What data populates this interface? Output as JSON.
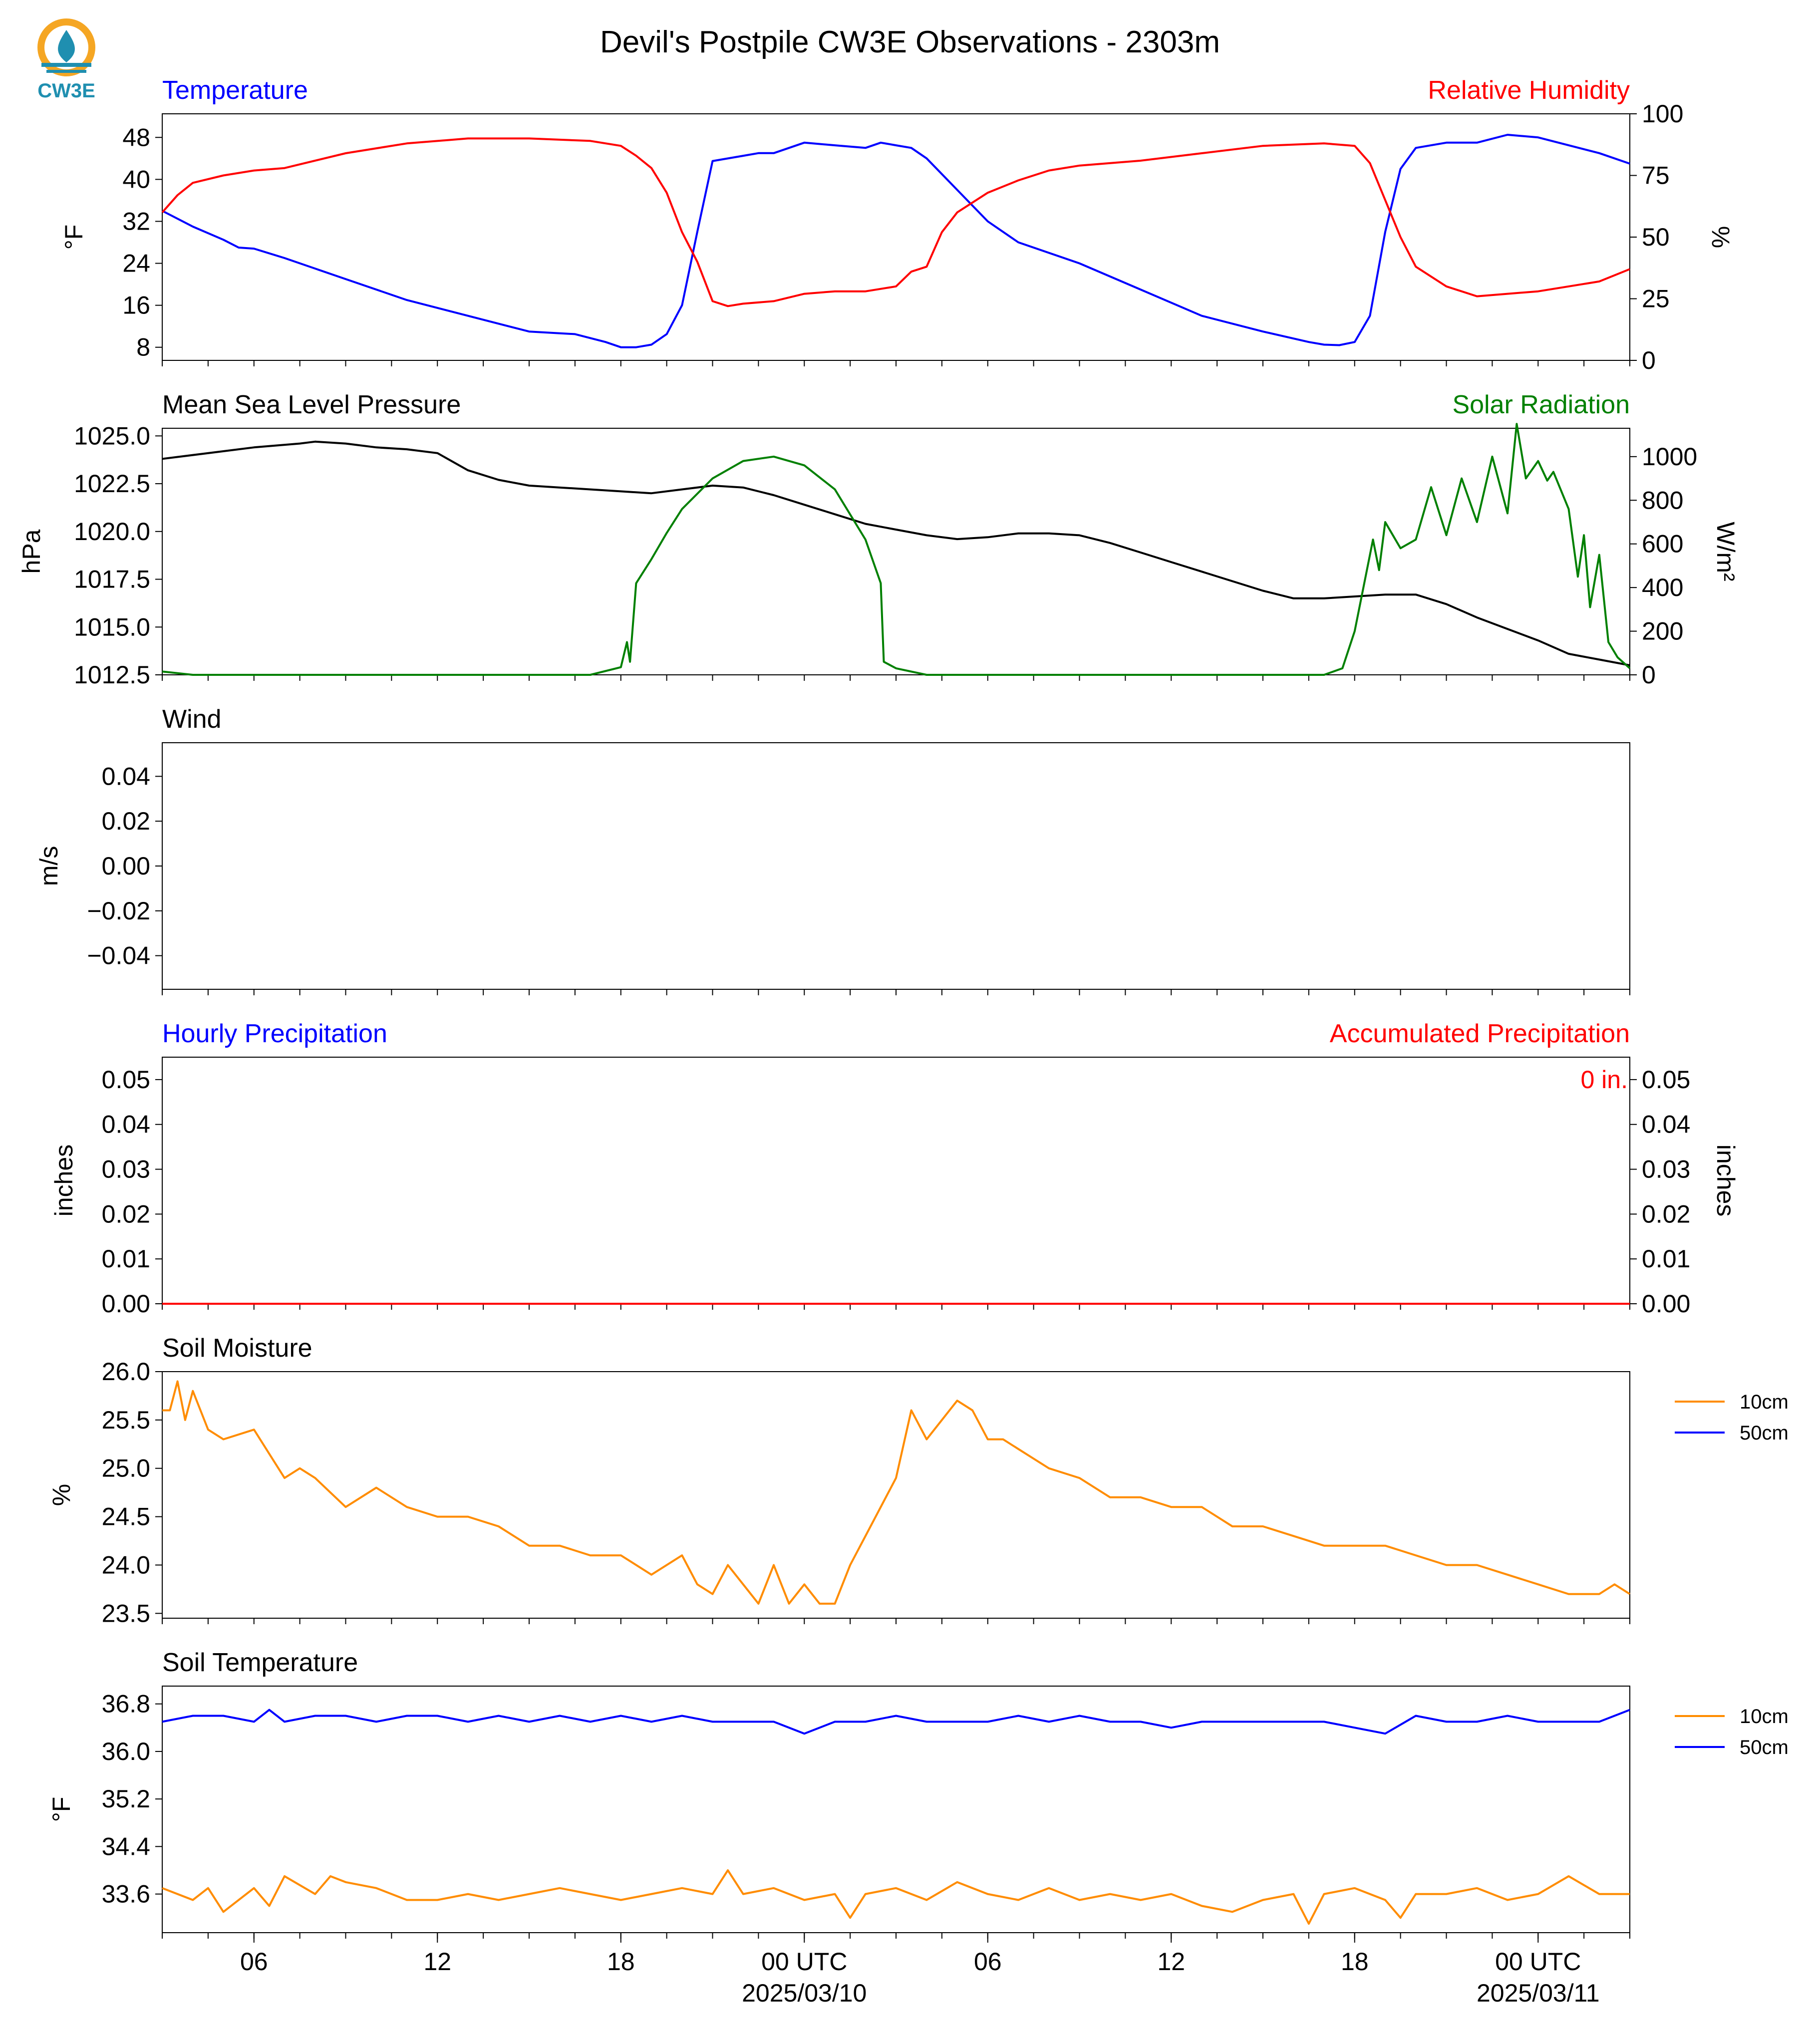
{
  "figure": {
    "title": "Devil's Postpile CW3E Observations - 2303m",
    "logo_text": "CW3E",
    "x_ticks": [
      "06",
      "12",
      "18",
      "00 UTC",
      "06",
      "12",
      "18",
      "00 UTC"
    ],
    "x_dates": [
      "2025/03/10",
      "2025/03/11"
    ]
  },
  "colors": {
    "blue": "#0000ff",
    "red": "#ff0000",
    "green": "#008000",
    "black": "#000000",
    "orange": "#ff8c00",
    "logo_orange": "#f5a623",
    "logo_teal": "#1f8fb0"
  },
  "chart_data": [
    {
      "type": "line",
      "title_left": "Temperature",
      "title_right": "Relative Humidity",
      "ylabel": "°F",
      "ylabel_right": "%",
      "yticks": [
        "48",
        "40",
        "32",
        "24",
        "16",
        "8"
      ],
      "yticks_right": [
        "100",
        "75",
        "50",
        "25",
        "0"
      ],
      "ylim": [
        5.5,
        52.5
      ],
      "ylim_right": [
        0,
        100
      ],
      "x_hours_range": [
        0,
        48
      ],
      "series": [
        {
          "name": "Temperature",
          "axis": "left",
          "color": "#0000ff",
          "x": [
            0,
            1,
            2,
            2.5,
            3,
            4,
            6,
            8,
            10,
            12,
            13.5,
            14.5,
            15,
            15.5,
            16,
            16.5,
            17,
            17.5,
            18,
            19,
            19.5,
            20,
            21,
            22,
            23,
            23.5,
            24,
            24.5,
            25,
            26,
            27,
            28,
            30,
            32,
            34,
            36,
            37.5,
            38,
            38.5,
            39,
            39.5,
            40,
            40.5,
            41,
            42,
            43,
            44,
            45,
            46,
            47,
            48
          ],
          "y": [
            34,
            31,
            28.5,
            27,
            26.8,
            25,
            21,
            17,
            14,
            11,
            10.5,
            9,
            8,
            8,
            8.5,
            10.5,
            16,
            30,
            43.5,
            44.5,
            45,
            45,
            47,
            46.5,
            46,
            47,
            46.5,
            46,
            44,
            38,
            32,
            28,
            24,
            19,
            14,
            11,
            9,
            8.5,
            8.4,
            9,
            14,
            30,
            42,
            46,
            47,
            47,
            48.5,
            48,
            46.5,
            45,
            43
          ]
        },
        {
          "name": "Relative Humidity",
          "axis": "right",
          "color": "#ff0000",
          "x": [
            0,
            0.5,
            1,
            2,
            3,
            4,
            6,
            8,
            10,
            12,
            14,
            15,
            15.5,
            16,
            16.5,
            17,
            17.5,
            18,
            18.5,
            19,
            20,
            21,
            22,
            23,
            24,
            24.5,
            25,
            25.5,
            26,
            27,
            28,
            29,
            30,
            32,
            34,
            36,
            38,
            39,
            39.5,
            40,
            40.5,
            41,
            42,
            43,
            44,
            45,
            46,
            47,
            48
          ],
          "y": [
            60,
            67,
            72,
            75,
            77,
            78,
            84,
            88,
            90,
            90,
            89,
            87,
            83,
            78,
            68,
            52,
            40,
            24,
            22,
            23,
            24,
            27,
            28,
            28,
            30,
            36,
            38,
            52,
            60,
            68,
            73,
            77,
            79,
            81,
            84,
            87,
            88,
            87,
            80,
            65,
            50,
            38,
            30,
            26,
            27,
            28,
            30,
            32,
            37
          ]
        }
      ]
    },
    {
      "type": "line",
      "title_left": "Mean Sea Level Pressure",
      "title_right": "Solar Radiation",
      "ylabel": "hPa",
      "ylabel_right": "W/m²",
      "yticks": [
        "1025.0",
        "1022.5",
        "1020.0",
        "1017.5",
        "1015.0",
        "1012.5"
      ],
      "yticks_right": [
        "1000",
        "800",
        "600",
        "400",
        "200",
        "0"
      ],
      "ylim": [
        1012.5,
        1025.4
      ],
      "ylim_right": [
        0,
        1130
      ],
      "x_hours_range": [
        0,
        48
      ],
      "series": [
        {
          "name": "Mean Sea Level Pressure",
          "axis": "left",
          "color": "#000000",
          "x": [
            0,
            2,
            3,
            4.5,
            5,
            6,
            7,
            8,
            9,
            10,
            11,
            12,
            13,
            14,
            15,
            16,
            17,
            18,
            19,
            20,
            21,
            22,
            23,
            24,
            25,
            26,
            27,
            28,
            29,
            30,
            31,
            32,
            33,
            34,
            35,
            36,
            37,
            38,
            39,
            40,
            41,
            42,
            43,
            44,
            45,
            46,
            47,
            48
          ],
          "y": [
            1023.8,
            1024.2,
            1024.4,
            1024.6,
            1024.7,
            1024.6,
            1024.4,
            1024.3,
            1024.1,
            1023.2,
            1022.7,
            1022.4,
            1022.3,
            1022.2,
            1022.1,
            1022.0,
            1022.2,
            1022.4,
            1022.3,
            1021.9,
            1021.4,
            1020.9,
            1020.4,
            1020.1,
            1019.8,
            1019.6,
            1019.7,
            1019.9,
            1019.9,
            1019.8,
            1019.4,
            1018.9,
            1018.4,
            1017.9,
            1017.4,
            1016.9,
            1016.5,
            1016.5,
            1016.6,
            1016.7,
            1016.7,
            1016.2,
            1015.5,
            1014.9,
            1014.3,
            1013.6,
            1013.3,
            1013.0
          ]
        },
        {
          "name": "Solar Radiation",
          "axis": "right",
          "color": "#008000",
          "x": [
            0,
            1,
            14,
            15,
            15.2,
            15.3,
            15.5,
            16,
            16.5,
            17,
            18,
            19,
            20,
            21,
            22,
            23,
            23.5,
            23.6,
            24,
            25,
            38,
            38.6,
            39,
            39.5,
            39.6,
            39.8,
            40,
            40.5,
            41,
            41.5,
            42,
            42.5,
            43,
            43.5,
            44,
            44.3,
            44.6,
            45,
            45.3,
            45.5,
            46,
            46.3,
            46.5,
            46.7,
            47,
            47.3,
            47.6,
            48
          ],
          "y": [
            15,
            0,
            0,
            35,
            150,
            60,
            420,
            530,
            650,
            760,
            900,
            980,
            1000,
            960,
            850,
            620,
            420,
            60,
            30,
            0,
            0,
            30,
            200,
            550,
            620,
            480,
            700,
            580,
            620,
            860,
            640,
            900,
            700,
            1000,
            740,
            1150,
            900,
            980,
            890,
            930,
            760,
            450,
            640,
            310,
            550,
            150,
            80,
            30
          ]
        }
      ]
    },
    {
      "type": "line",
      "title_left": "Wind",
      "ylabel": "m/s",
      "yticks": [
        "0.04",
        "0.02",
        "0.00",
        "−0.02",
        "−0.04"
      ],
      "ylim": [
        -0.055,
        0.055
      ],
      "series": []
    },
    {
      "type": "bar",
      "title_left": "Hourly Precipitation",
      "title_right": "Accumulated Precipitation",
      "ylabel": "inches",
      "ylabel_right": "inches",
      "yticks": [
        "0.05",
        "0.04",
        "0.03",
        "0.02",
        "0.01",
        "0.00"
      ],
      "yticks_right": [
        "0.05",
        "0.04",
        "0.03",
        "0.02",
        "0.01",
        "0.00"
      ],
      "ylim": [
        0,
        0.055
      ],
      "total_label": "0 in.",
      "accumulated": {
        "x": [
          0,
          48
        ],
        "y": [
          0,
          0
        ]
      }
    },
    {
      "type": "line",
      "title_left": "Soil Moisture",
      "ylabel": "%",
      "yticks": [
        "26.0",
        "25.5",
        "25.0",
        "24.5",
        "24.0",
        "23.5"
      ],
      "ylim": [
        23.45,
        26.0
      ],
      "legend": [
        "10cm",
        "50cm"
      ],
      "series": [
        {
          "name": "10cm",
          "color": "#ff8c00",
          "x": [
            0,
            0.25,
            0.5,
            0.75,
            1,
            1.5,
            2,
            3,
            4,
            4.5,
            5,
            6,
            7,
            8,
            9,
            10,
            11,
            12,
            13,
            14,
            15,
            16,
            17,
            17.5,
            18,
            18.5,
            19,
            19.5,
            20,
            20.5,
            21,
            21.5,
            22,
            22.5,
            23,
            23.5,
            24,
            24.5,
            25,
            25.5,
            26,
            26.5,
            27,
            27.5,
            28,
            29,
            30,
            31,
            32,
            33,
            34,
            35,
            36,
            37,
            38,
            39,
            40,
            41,
            42,
            43,
            44,
            45,
            46,
            46.5,
            47,
            47.5,
            48
          ],
          "y": [
            25.6,
            25.6,
            25.9,
            25.5,
            25.8,
            25.4,
            25.3,
            25.4,
            24.9,
            25.0,
            24.9,
            24.6,
            24.8,
            24.6,
            24.5,
            24.5,
            24.4,
            24.2,
            24.2,
            24.1,
            24.1,
            23.9,
            24.1,
            23.8,
            23.7,
            24.0,
            23.8,
            23.6,
            24.0,
            23.6,
            23.8,
            23.6,
            23.6,
            24.0,
            24.3,
            24.6,
            24.9,
            25.6,
            25.3,
            25.5,
            25.7,
            25.6,
            25.3,
            25.3,
            25.2,
            25.0,
            24.9,
            24.7,
            24.7,
            24.6,
            24.6,
            24.4,
            24.4,
            24.3,
            24.2,
            24.2,
            24.2,
            24.1,
            24.0,
            24.0,
            23.9,
            23.8,
            23.7,
            23.7,
            23.7,
            23.8,
            23.7
          ]
        },
        {
          "name": "50cm",
          "color": "#0000ff",
          "x": [],
          "y": []
        }
      ]
    },
    {
      "type": "line",
      "title_left": "Soil Temperature",
      "ylabel": "°F",
      "yticks": [
        "36.8",
        "36.0",
        "35.2",
        "34.4",
        "33.6"
      ],
      "ylim": [
        32.95,
        37.1
      ],
      "legend": [
        "10cm",
        "50cm"
      ],
      "series": [
        {
          "name": "10cm",
          "color": "#ff8c00",
          "x": [
            0,
            1,
            1.5,
            2,
            3,
            3.5,
            4,
            5,
            5.5,
            6,
            7,
            8,
            9,
            10,
            11,
            12,
            13,
            14,
            15,
            16,
            17,
            18,
            18.5,
            19,
            20,
            21,
            22,
            22.5,
            23,
            24,
            25,
            26,
            27,
            28,
            29,
            30,
            31,
            32,
            33,
            34,
            35,
            36,
            37,
            37.5,
            38,
            39,
            40,
            40.5,
            41,
            42,
            43,
            44,
            45,
            46,
            47,
            48
          ],
          "y": [
            33.7,
            33.5,
            33.7,
            33.3,
            33.7,
            33.4,
            33.9,
            33.6,
            33.9,
            33.8,
            33.7,
            33.5,
            33.5,
            33.6,
            33.5,
            33.6,
            33.7,
            33.6,
            33.5,
            33.6,
            33.7,
            33.6,
            34.0,
            33.6,
            33.7,
            33.5,
            33.6,
            33.2,
            33.6,
            33.7,
            33.5,
            33.8,
            33.6,
            33.5,
            33.7,
            33.5,
            33.6,
            33.5,
            33.6,
            33.4,
            33.3,
            33.5,
            33.6,
            33.1,
            33.6,
            33.7,
            33.5,
            33.2,
            33.6,
            33.6,
            33.7,
            33.5,
            33.6,
            33.9,
            33.6,
            33.6
          ]
        },
        {
          "name": "50cm",
          "color": "#0000ff",
          "x": [
            0,
            1,
            2,
            3,
            3.5,
            4,
            5,
            6,
            7,
            8,
            9,
            10,
            11,
            12,
            13,
            14,
            15,
            16,
            17,
            18,
            19,
            20,
            21,
            22,
            23,
            24,
            25,
            26,
            27,
            28,
            29,
            30,
            31,
            32,
            33,
            34,
            35,
            36,
            37,
            38,
            39,
            40,
            41,
            42,
            43,
            44,
            45,
            46,
            47,
            48
          ],
          "y": [
            36.5,
            36.6,
            36.6,
            36.5,
            36.7,
            36.5,
            36.6,
            36.6,
            36.5,
            36.6,
            36.6,
            36.5,
            36.6,
            36.5,
            36.6,
            36.5,
            36.6,
            36.5,
            36.6,
            36.5,
            36.5,
            36.5,
            36.3,
            36.5,
            36.5,
            36.6,
            36.5,
            36.5,
            36.5,
            36.6,
            36.5,
            36.6,
            36.5,
            36.5,
            36.4,
            36.5,
            36.5,
            36.5,
            36.5,
            36.5,
            36.4,
            36.3,
            36.6,
            36.5,
            36.5,
            36.6,
            36.5,
            36.5,
            36.5,
            36.7
          ]
        }
      ]
    }
  ]
}
